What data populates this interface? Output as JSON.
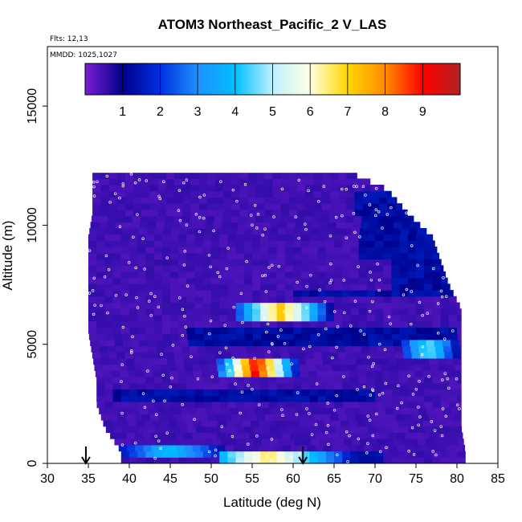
{
  "chart_data": {
    "type": "heatmap",
    "title": "ATOM3 Northeast_Pacific_2 V_LAS",
    "subtitle_lines": [
      "Flts: 12,13",
      "MMDD: 1025,1027"
    ],
    "xlabel": "Latitude (deg N)",
    "ylabel": "Altitude (m)",
    "xlim": [
      30,
      85
    ],
    "ylim": [
      0,
      17500
    ],
    "x_ticks": [
      "30",
      "35",
      "40",
      "45",
      "50",
      "55",
      "60",
      "65",
      "70",
      "75",
      "80",
      "85"
    ],
    "y_ticks": [
      "0",
      "5000",
      "10000",
      "15000"
    ],
    "colorbar": {
      "range": [
        0,
        10
      ],
      "ticks": [
        "1",
        "2",
        "3",
        "4",
        "5",
        "6",
        "7",
        "8",
        "9"
      ],
      "colors": [
        "#7a1fd6",
        "#00008b",
        "#0030e0",
        "#1e90ff",
        "#00bfff",
        "#bfefff",
        "#ffffe0",
        "#ffd700",
        "#ff8c00",
        "#ff0000",
        "#b22222"
      ]
    },
    "arrow_markers_lat": [
      34.7,
      61.2
    ],
    "envelope": [
      {
        "alt": 500,
        "lat_min": 39.0,
        "lat_max": 81.0
      },
      {
        "alt": 1500,
        "lat_min": 37.0,
        "lat_max": 80.5
      },
      {
        "alt": 2500,
        "lat_min": 36.0,
        "lat_max": 80.5
      },
      {
        "alt": 3500,
        "lat_min": 36.0,
        "lat_max": 80.5
      },
      {
        "alt": 4500,
        "lat_min": 35.5,
        "lat_max": 80.5
      },
      {
        "alt": 5500,
        "lat_min": 35.0,
        "lat_max": 80.5
      },
      {
        "alt": 6500,
        "lat_min": 35.0,
        "lat_max": 80.5
      },
      {
        "alt": 7500,
        "lat_min": 35.0,
        "lat_max": 79.0
      },
      {
        "alt": 8500,
        "lat_min": 35.0,
        "lat_max": 78.0
      },
      {
        "alt": 9500,
        "lat_min": 35.0,
        "lat_max": 77.0
      },
      {
        "alt": 10500,
        "lat_min": 35.5,
        "lat_max": 74.0
      },
      {
        "alt": 11500,
        "lat_min": 35.5,
        "lat_max": 71.5
      },
      {
        "alt": 12200,
        "lat_min": 35.5,
        "lat_max": 67.0
      }
    ],
    "features": [
      {
        "lat_min": 53.0,
        "lat_max": 65.0,
        "alt_min": 6100,
        "alt_max": 6700,
        "peak_lat": 58.5,
        "peak_value": 7.0
      },
      {
        "lat_min": 51.0,
        "lat_max": 61.0,
        "alt_min": 3600,
        "alt_max": 4500,
        "peak_lat": 55.5,
        "peak_value": 9.0
      },
      {
        "lat_min": 73.0,
        "lat_max": 80.0,
        "alt_min": 4500,
        "alt_max": 5100,
        "peak_lat": 76.5,
        "peak_value": 4.5
      },
      {
        "lat_min": 51.0,
        "lat_max": 71.0,
        "alt_min": 100,
        "alt_max": 600,
        "peak_lat": 57.0,
        "peak_value": 6.5
      },
      {
        "lat_min": 39.0,
        "lat_max": 52.0,
        "alt_min": 300,
        "alt_max": 900,
        "peak_lat": 45.0,
        "peak_value": 3.8
      }
    ],
    "dark_bands": [
      {
        "lat_min": 38.0,
        "lat_max": 70.0,
        "alt_min": 2600,
        "alt_max": 3200
      },
      {
        "lat_min": 47.0,
        "lat_max": 80.0,
        "alt_min": 4900,
        "alt_max": 5700
      },
      {
        "lat_min": 60.0,
        "lat_max": 80.0,
        "alt_min": 6900,
        "alt_max": 7400
      },
      {
        "lat_min": 68.0,
        "lat_max": 78.0,
        "alt_min": 8500,
        "alt_max": 11500
      }
    ]
  }
}
